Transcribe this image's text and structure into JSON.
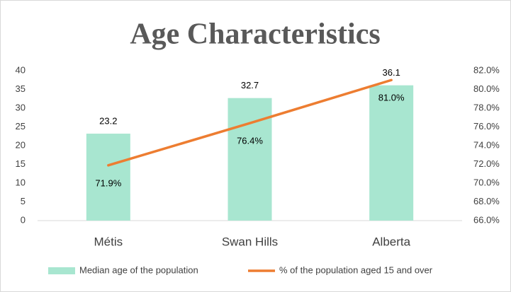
{
  "chart_data": {
    "type": "bar",
    "title": "Age Characteristics",
    "categories": [
      "Métis",
      "Swan Hills",
      "Alberta"
    ],
    "series": [
      {
        "name": "Median age of the population",
        "type": "bar",
        "color": "#a8e6d0",
        "values": [
          23.2,
          32.7,
          36.1
        ]
      },
      {
        "name": "% of the population aged 15 and over",
        "type": "line",
        "axis": "y2",
        "color": "#ed7d31",
        "values": [
          71.9,
          76.4,
          81.0
        ],
        "value_labels": [
          "71.9%",
          "76.4%",
          "81.0%"
        ]
      }
    ],
    "ylim": [
      0,
      40
    ],
    "yticks": [
      0,
      5,
      10,
      15,
      20,
      25,
      30,
      35,
      40
    ],
    "y2lim": [
      66,
      82
    ],
    "y2ticks": [
      {
        "value": 66,
        "label": "66.0%"
      },
      {
        "value": 68,
        "label": "68.0%"
      },
      {
        "value": 70,
        "label": "70.0%"
      },
      {
        "value": 72,
        "label": "72.0%"
      },
      {
        "value": 74,
        "label": "74.0%"
      },
      {
        "value": 76,
        "label": "76.0%"
      },
      {
        "value": 78,
        "label": "78.0%"
      },
      {
        "value": 80,
        "label": "80.0%"
      },
      {
        "value": 82,
        "label": "82.0%"
      }
    ],
    "legend": "bottom"
  }
}
